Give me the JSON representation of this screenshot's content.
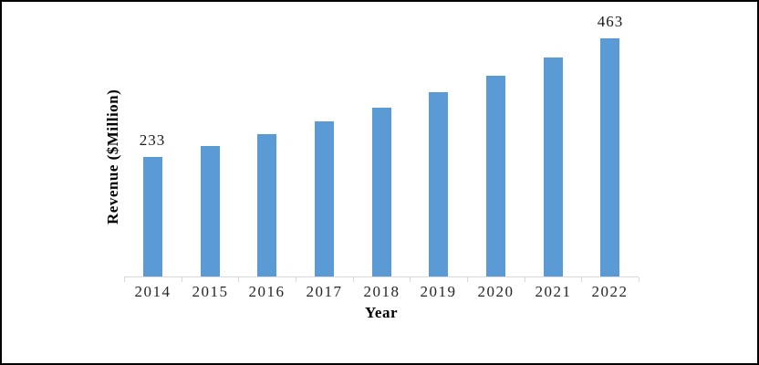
{
  "chart_data": {
    "type": "bar",
    "title": "",
    "categories": [
      "2014",
      "2015",
      "2016",
      "2017",
      "2018",
      "2019",
      "2020",
      "2021",
      "2022"
    ],
    "values": [
      233,
      254,
      277,
      302,
      328,
      358,
      390,
      426,
      463
    ],
    "xlabel": "Year",
    "ylabel": "Revenue ($Million)",
    "ylim": [
      0,
      480
    ],
    "grid": false,
    "legend": "none",
    "bar_color": "#5B9BD5",
    "axis_line_color": "#D9D9D9",
    "data_labels": {
      "2014": "233",
      "2022": "463"
    }
  }
}
